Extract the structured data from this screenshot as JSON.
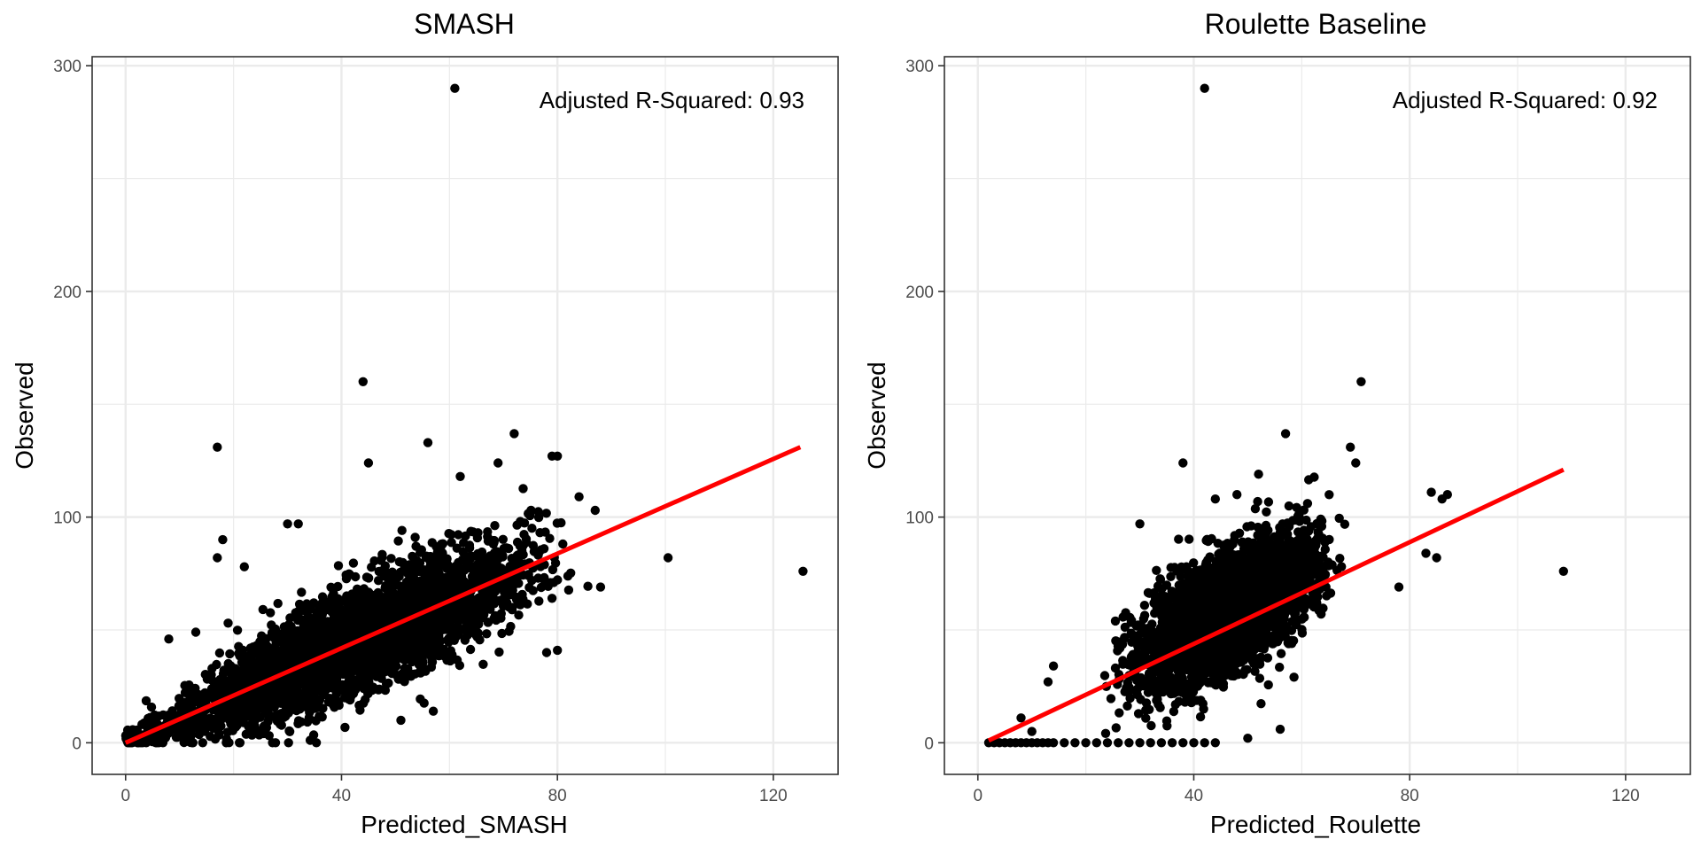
{
  "figure": {
    "colors": {
      "point": "#000000",
      "fit_line": "#ff0000",
      "grid": "#ebebeb",
      "panel_border": "#333333",
      "text": "#000000",
      "tick_text": "#4d4d4d"
    }
  },
  "chart_data": [
    {
      "type": "scatter",
      "title": "SMASH",
      "xlabel": "Predicted_SMASH",
      "ylabel": "Observed",
      "xlim": [
        -6.2,
        132
      ],
      "ylim": [
        -14,
        304
      ],
      "xticks": [
        0,
        40,
        80,
        120
      ],
      "yticks": [
        0,
        100,
        200,
        300
      ],
      "grid": true,
      "annotation": "Adjusted R-Squared: 0.93",
      "annotation_placement": "top-right",
      "fit_line": {
        "x": [
          0,
          125
        ],
        "y": [
          0,
          131
        ]
      },
      "highlighted_points": [
        {
          "x": 61,
          "y": 290
        },
        {
          "x": 44,
          "y": 160
        },
        {
          "x": 17,
          "y": 131
        },
        {
          "x": 125.5,
          "y": 76
        },
        {
          "x": 100.5,
          "y": 82
        },
        {
          "x": 88,
          "y": 69
        },
        {
          "x": 72,
          "y": 137
        },
        {
          "x": 56,
          "y": 133
        },
        {
          "x": 79,
          "y": 127
        },
        {
          "x": 80,
          "y": 127
        },
        {
          "x": 18,
          "y": 90
        },
        {
          "x": 17,
          "y": 82
        },
        {
          "x": 22,
          "y": 78
        },
        {
          "x": 84,
          "y": 109
        },
        {
          "x": 87,
          "y": 103
        },
        {
          "x": 45,
          "y": 124
        },
        {
          "x": 8,
          "y": 46
        },
        {
          "x": 13,
          "y": 49
        },
        {
          "x": 19,
          "y": 53
        },
        {
          "x": 51,
          "y": 10
        },
        {
          "x": 57,
          "y": 14
        },
        {
          "x": 80,
          "y": 41
        },
        {
          "x": 78,
          "y": 40
        },
        {
          "x": 79,
          "y": 64
        },
        {
          "x": 30,
          "y": 97
        },
        {
          "x": 32,
          "y": 97
        },
        {
          "x": 62,
          "y": 118
        },
        {
          "x": 69,
          "y": 124
        }
      ],
      "cloud": {
        "n": 3200,
        "x_range": [
          0,
          88
        ],
        "slope": 1.05,
        "spread_sd": 12
      }
    },
    {
      "type": "scatter",
      "title": "Roulette Baseline",
      "xlabel": "Predicted_Roulette",
      "ylabel": "Observed",
      "xlim": [
        -6.2,
        132
      ],
      "ylim": [
        -14,
        304
      ],
      "xticks": [
        0,
        40,
        80,
        120
      ],
      "yticks": [
        0,
        100,
        200,
        300
      ],
      "grid": true,
      "annotation": "Adjusted R-Squared: 0.92",
      "annotation_placement": "top-right",
      "fit_line": {
        "x": [
          2,
          108.5
        ],
        "y": [
          1,
          121
        ]
      },
      "highlighted_points": [
        {
          "x": 42,
          "y": 290
        },
        {
          "x": 71,
          "y": 160
        },
        {
          "x": 108.5,
          "y": 76
        },
        {
          "x": 38,
          "y": 124
        },
        {
          "x": 57,
          "y": 137
        },
        {
          "x": 69,
          "y": 131
        },
        {
          "x": 70,
          "y": 124
        },
        {
          "x": 86,
          "y": 108
        },
        {
          "x": 87,
          "y": 110
        },
        {
          "x": 84,
          "y": 111
        },
        {
          "x": 83,
          "y": 84
        },
        {
          "x": 85,
          "y": 82
        },
        {
          "x": 78,
          "y": 69
        },
        {
          "x": 14,
          "y": 34
        },
        {
          "x": 13,
          "y": 27
        },
        {
          "x": 30,
          "y": 97
        },
        {
          "x": 8,
          "y": 11
        },
        {
          "x": 10,
          "y": 5
        },
        {
          "x": 56,
          "y": 6
        },
        {
          "x": 50,
          "y": 2
        },
        {
          "x": 44,
          "y": 108
        },
        {
          "x": 48,
          "y": 110
        },
        {
          "x": 52,
          "y": 119
        }
      ],
      "zero_points_x": [
        2,
        3,
        4,
        5,
        6,
        7,
        8,
        9,
        10,
        11,
        12,
        13,
        14,
        16,
        18,
        20,
        22,
        24,
        26,
        28,
        30,
        32,
        34,
        36,
        38,
        40,
        42,
        44
      ],
      "cloud": {
        "n": 3200,
        "x_range": [
          22,
          70
        ],
        "slope": 1.25,
        "spread_sd": 13
      }
    }
  ]
}
